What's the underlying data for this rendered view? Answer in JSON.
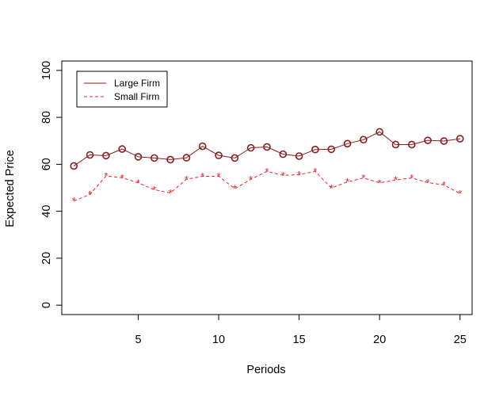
{
  "chart_data": {
    "type": "line",
    "title": "",
    "xlabel": "Periods",
    "ylabel": "Expected Price",
    "xlim": [
      0.25,
      25.75
    ],
    "ylim": [
      -4,
      104
    ],
    "xticks": [
      5,
      10,
      15,
      20,
      25
    ],
    "yticks": [
      0,
      20,
      40,
      60,
      80,
      100
    ],
    "x": [
      1,
      2,
      3,
      4,
      5,
      6,
      7,
      8,
      9,
      10,
      11,
      12,
      13,
      14,
      15,
      16,
      17,
      18,
      19,
      20,
      21,
      22,
      23,
      24,
      25
    ],
    "series": [
      {
        "name": "Large Firm",
        "color": "#8b1a1a",
        "line_style": "solid",
        "marker": "o",
        "values": [
          59.3,
          64.0,
          63.7,
          66.5,
          63.2,
          62.7,
          62.0,
          62.8,
          67.7,
          63.8,
          62.7,
          67.0,
          67.4,
          64.3,
          63.5,
          66.3,
          66.4,
          68.8,
          70.5,
          73.8,
          68.4,
          68.4,
          70.2,
          69.9,
          70.9
        ]
      },
      {
        "name": "Small Firm",
        "color": "#e8242b",
        "line_style": "dashed",
        "marker": "*",
        "values": [
          44.4,
          47.2,
          55.0,
          54.3,
          52.1,
          49.2,
          47.8,
          53.6,
          54.9,
          54.9,
          49.6,
          53.6,
          57.0,
          55.3,
          55.6,
          57.0,
          49.9,
          52.5,
          54.2,
          52.1,
          53.3,
          54.2,
          52.2,
          51.2,
          47.5
        ]
      }
    ],
    "legend": {
      "position": "top-left",
      "entries": [
        "Large Firm",
        "Small Firm"
      ]
    },
    "grid": false
  }
}
